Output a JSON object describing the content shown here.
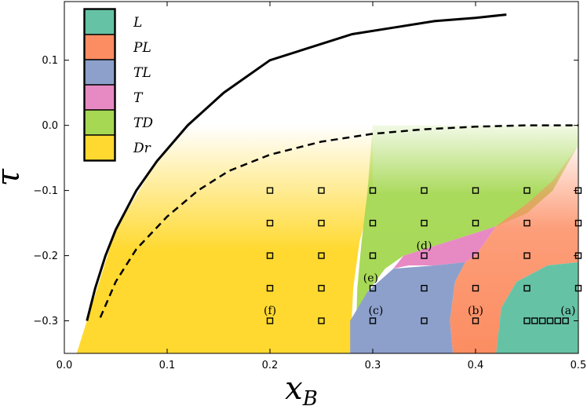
{
  "chart_data": {
    "type": "scatter",
    "title": "",
    "xlabel": "x",
    "xlabel_sub": "B",
    "ylabel": "τ",
    "xlim": [
      0.0,
      0.5
    ],
    "ylim": [
      -0.35,
      0.19
    ],
    "xticks": [
      0.0,
      0.1,
      0.2,
      0.3,
      0.4,
      0.5
    ],
    "xtick_labels": [
      "0.0",
      "0.1",
      "0.2",
      "0.3",
      "0.4",
      "0.5"
    ],
    "yticks": [
      0.1,
      0.0,
      -0.1,
      -0.2,
      -0.3
    ],
    "ytick_labels": [
      "0.1",
      "0.0",
      "−0.1",
      "−0.2",
      "−0.3"
    ],
    "legend_position": "top-left",
    "legend": [
      {
        "label": "L",
        "color": "#66c2a5"
      },
      {
        "label": "PL",
        "color": "#fc8d62"
      },
      {
        "label": "TL",
        "color": "#8da0cb"
      },
      {
        "label": "T",
        "color": "#e78ac3"
      },
      {
        "label": "TD",
        "color": "#a6d854"
      },
      {
        "label": "Dr",
        "color": "#ffd92f"
      }
    ],
    "solid_curve": {
      "x": [
        0.022,
        0.03,
        0.04,
        0.05,
        0.07,
        0.09,
        0.12,
        0.155,
        0.2,
        0.24,
        0.28,
        0.32,
        0.36,
        0.4,
        0.43
      ],
      "y": [
        -0.3,
        -0.25,
        -0.2,
        -0.16,
        -0.1,
        -0.055,
        0.0,
        0.05,
        0.1,
        0.12,
        0.14,
        0.15,
        0.16,
        0.165,
        0.17
      ]
    },
    "dashed_curve": {
      "x": [
        0.035,
        0.05,
        0.07,
        0.1,
        0.13,
        0.16,
        0.2,
        0.25,
        0.3,
        0.35,
        0.4,
        0.45,
        0.5
      ],
      "y": [
        -0.295,
        -0.24,
        -0.19,
        -0.14,
        -0.1,
        -0.07,
        -0.045,
        -0.025,
        -0.013,
        -0.006,
        -0.002,
        0.0,
        0.0
      ]
    },
    "sample_points": {
      "x": [
        0.2,
        0.25,
        0.3,
        0.35,
        0.4,
        0.45,
        0.5,
        0.2,
        0.25,
        0.3,
        0.35,
        0.4,
        0.45,
        0.5,
        0.2,
        0.25,
        0.3,
        0.35,
        0.4,
        0.45,
        0.5,
        0.2,
        0.25,
        0.3,
        0.35,
        0.4,
        0.45,
        0.5,
        0.2,
        0.25,
        0.3,
        0.35,
        0.4,
        0.45,
        0.4575,
        0.465,
        0.4725,
        0.48,
        0.4875
      ],
      "y": [
        -0.1,
        -0.1,
        -0.1,
        -0.1,
        -0.1,
        -0.1,
        -0.1,
        -0.15,
        -0.15,
        -0.15,
        -0.15,
        -0.15,
        -0.15,
        -0.15,
        -0.2,
        -0.2,
        -0.2,
        -0.2,
        -0.2,
        -0.2,
        -0.2,
        -0.25,
        -0.25,
        -0.25,
        -0.25,
        -0.25,
        -0.25,
        -0.25,
        -0.3,
        -0.3,
        -0.3,
        -0.3,
        -0.3,
        -0.3,
        -0.3,
        -0.3,
        -0.3,
        -0.3,
        -0.3
      ]
    },
    "annotations": [
      {
        "text": "(a)",
        "x": 0.49,
        "y": -0.29
      },
      {
        "text": "(b)",
        "x": 0.4,
        "y": -0.29
      },
      {
        "text": "(c)",
        "x": 0.303,
        "y": -0.29
      },
      {
        "text": "(d)",
        "x": 0.35,
        "y": -0.19
      },
      {
        "text": "(e)",
        "x": 0.298,
        "y": -0.24
      },
      {
        "text": "(f)",
        "x": 0.2,
        "y": -0.29
      }
    ],
    "regions": {
      "Dr": [
        [
          0.012,
          -0.35
        ],
        [
          0.022,
          -0.3
        ],
        [
          0.05,
          -0.16
        ],
        [
          0.09,
          -0.055
        ],
        [
          0.12,
          0.0
        ],
        [
          0.3,
          0.0
        ],
        [
          0.3,
          -0.1
        ],
        [
          0.287,
          -0.18
        ],
        [
          0.281,
          -0.25
        ],
        [
          0.278,
          -0.35
        ]
      ],
      "TD": [
        [
          0.3,
          0.0
        ],
        [
          0.5,
          0.0
        ],
        [
          0.5,
          -0.03
        ],
        [
          0.475,
          -0.1
        ],
        [
          0.45,
          -0.135
        ],
        [
          0.42,
          -0.155
        ],
        [
          0.39,
          -0.17
        ],
        [
          0.36,
          -0.185
        ],
        [
          0.33,
          -0.2
        ],
        [
          0.312,
          -0.22
        ],
        [
          0.295,
          -0.255
        ],
        [
          0.284,
          -0.3
        ],
        [
          0.285,
          -0.25
        ],
        [
          0.289,
          -0.18
        ],
        [
          0.295,
          -0.1
        ]
      ],
      "T": [
        [
          0.33,
          -0.2
        ],
        [
          0.36,
          -0.185
        ],
        [
          0.39,
          -0.17
        ],
        [
          0.42,
          -0.155
        ],
        [
          0.4,
          -0.2
        ],
        [
          0.39,
          -0.21
        ],
        [
          0.36,
          -0.215
        ],
        [
          0.335,
          -0.215
        ],
        [
          0.32,
          -0.22
        ]
      ],
      "TL": [
        [
          0.278,
          -0.35
        ],
        [
          0.278,
          -0.3
        ],
        [
          0.295,
          -0.255
        ],
        [
          0.32,
          -0.22
        ],
        [
          0.36,
          -0.215
        ],
        [
          0.39,
          -0.21
        ],
        [
          0.38,
          -0.24
        ],
        [
          0.375,
          -0.3
        ],
        [
          0.378,
          -0.35
        ]
      ],
      "PL": [
        [
          0.378,
          -0.35
        ],
        [
          0.375,
          -0.3
        ],
        [
          0.38,
          -0.24
        ],
        [
          0.39,
          -0.21
        ],
        [
          0.4,
          -0.2
        ],
        [
          0.42,
          -0.155
        ],
        [
          0.45,
          -0.12
        ],
        [
          0.475,
          -0.085
        ],
        [
          0.5,
          -0.03
        ],
        [
          0.5,
          -0.21
        ],
        [
          0.47,
          -0.215
        ],
        [
          0.44,
          -0.24
        ],
        [
          0.425,
          -0.28
        ],
        [
          0.42,
          -0.35
        ]
      ],
      "L": [
        [
          0.42,
          -0.35
        ],
        [
          0.425,
          -0.28
        ],
        [
          0.44,
          -0.24
        ],
        [
          0.47,
          -0.215
        ],
        [
          0.5,
          -0.21
        ],
        [
          0.5,
          -0.35
        ]
      ]
    }
  }
}
